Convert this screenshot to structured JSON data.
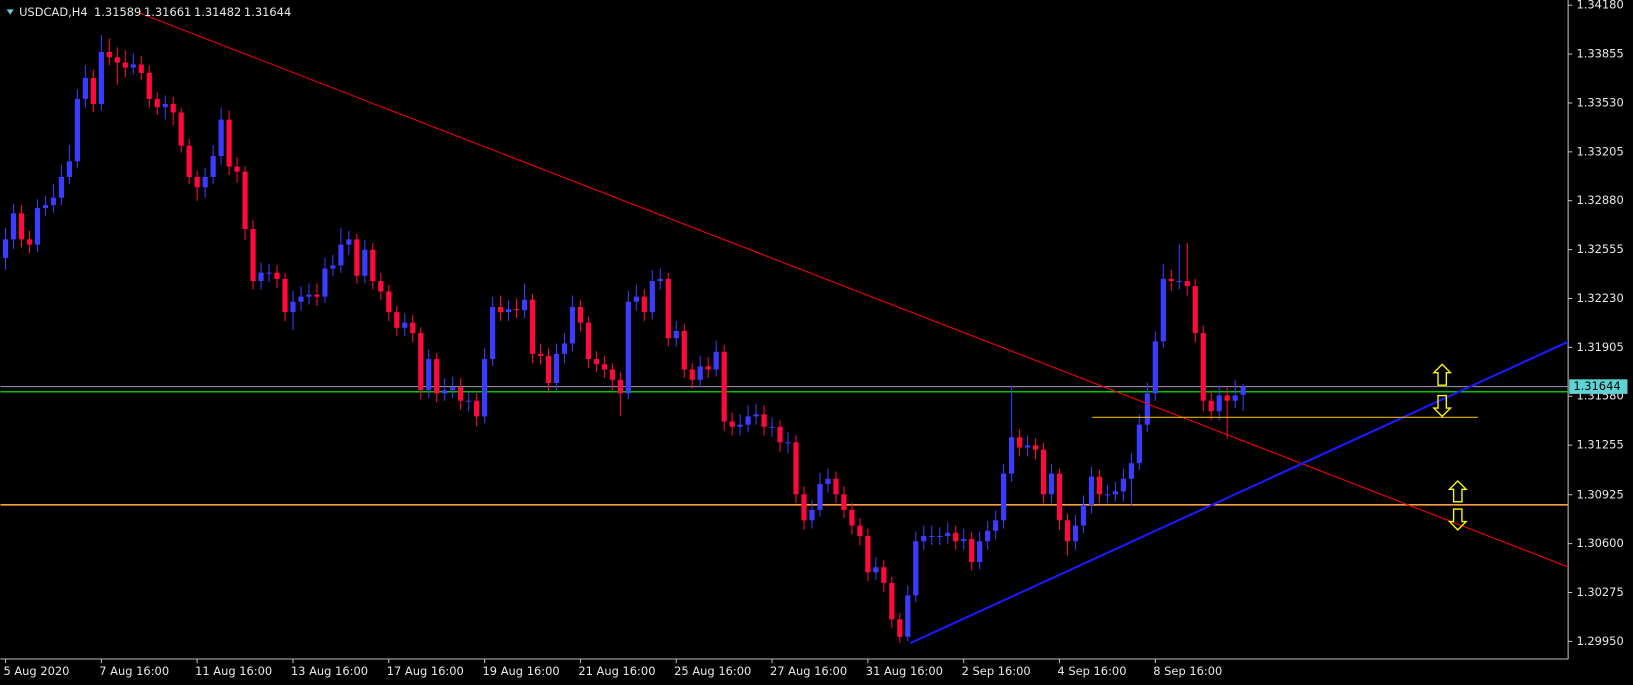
{
  "chart_data": {
    "type": "candlestick",
    "title": "USDCAD,H4",
    "header_values": [
      1.31589,
      1.31661,
      1.31482,
      1.31644
    ],
    "up_color": "#3c3cff",
    "down_color": "#ff0a3c",
    "ylim": [
      1.2984,
      1.3418
    ],
    "yticks": [
      {
        "value": 1.3418,
        "label": "1.34180"
      },
      1.33855,
      {
        "value": 1.3353,
        "label": "1.33530"
      },
      1.33205,
      {
        "value": 1.3288,
        "label": "1.32880"
      },
      1.32555,
      {
        "value": 1.3223,
        "label": "1.32230"
      },
      1.31905,
      {
        "value": 1.3158,
        "label": "1.31580"
      },
      1.31255,
      1.30925,
      {
        "value": 1.306,
        "label": "1.30600"
      },
      1.30275,
      {
        "value": 1.2995,
        "label": "1.29950"
      }
    ],
    "x": [
      "5 Aug 2020",
      null,
      null,
      null,
      null,
      null,
      null,
      null,
      null,
      null,
      null,
      null,
      "7 Aug 16:00",
      null,
      null,
      null,
      null,
      null,
      null,
      null,
      null,
      null,
      null,
      null,
      "11 Aug 16:00",
      null,
      null,
      null,
      null,
      null,
      null,
      null,
      null,
      null,
      null,
      null,
      "13 Aug 16:00",
      null,
      null,
      null,
      null,
      null,
      null,
      null,
      null,
      null,
      null,
      null,
      "17 Aug 16:00",
      null,
      null,
      null,
      null,
      null,
      null,
      null,
      null,
      null,
      null,
      null,
      "19 Aug 16:00",
      null,
      null,
      null,
      null,
      null,
      null,
      null,
      null,
      null,
      null,
      null,
      "21 Aug 16:00",
      null,
      null,
      null,
      null,
      null,
      null,
      null,
      null,
      null,
      null,
      null,
      "25 Aug 16:00",
      null,
      null,
      null,
      null,
      null,
      null,
      null,
      null,
      null,
      null,
      null,
      "27 Aug 16:00",
      null,
      null,
      null,
      null,
      null,
      null,
      null,
      null,
      null,
      null,
      null,
      "31 Aug 16:00",
      null,
      null,
      null,
      null,
      null,
      null,
      null,
      null,
      null,
      null,
      null,
      "2 Sep 16:00",
      null,
      null,
      null,
      null,
      null,
      null,
      null,
      null,
      null,
      null,
      null,
      "4 Sep 16:00",
      null,
      null,
      null,
      null,
      null,
      null,
      null,
      null,
      null,
      null,
      null,
      "8 Sep 16:00",
      null,
      null,
      null,
      null,
      null,
      null,
      null,
      null,
      null,
      null,
      null
    ],
    "candles": [
      [
        1.325,
        1.327,
        1.3242,
        1.32623
      ],
      [
        1.32623,
        1.3286,
        1.3256,
        1.32796
      ],
      [
        1.32796,
        1.3285,
        1.3257,
        1.32623
      ],
      [
        1.32623,
        1.3268,
        1.3253,
        1.32588
      ],
      [
        1.32588,
        1.3289,
        1.3254,
        1.32831
      ],
      [
        1.32831,
        1.3291,
        1.3278,
        1.32851
      ],
      [
        1.32851,
        1.3299,
        1.328,
        1.329
      ],
      [
        1.329,
        1.3312,
        1.3285,
        1.33038
      ],
      [
        1.33038,
        1.3325,
        1.3299,
        1.33142
      ],
      [
        1.33142,
        1.3362,
        1.331,
        1.33557
      ],
      [
        1.33557,
        1.3378,
        1.335,
        1.33696
      ],
      [
        1.33696,
        1.3375,
        1.3347,
        1.33523
      ],
      [
        1.33523,
        1.3398,
        1.3348,
        1.33869
      ],
      [
        1.33869,
        1.3396,
        1.3378,
        1.33834
      ],
      [
        1.33834,
        1.339,
        1.3365,
        1.33799
      ],
      [
        1.33799,
        1.3388,
        1.337,
        1.33765
      ],
      [
        1.33765,
        1.3386,
        1.3372,
        1.33786
      ],
      [
        1.33786,
        1.3384,
        1.3368,
        1.3373
      ],
      [
        1.3373,
        1.3378,
        1.335,
        1.33557
      ],
      [
        1.33557,
        1.336,
        1.3345,
        1.33502
      ],
      [
        1.33502,
        1.3358,
        1.3342,
        1.33523
      ],
      [
        1.33523,
        1.3357,
        1.3338,
        1.33467
      ],
      [
        1.33467,
        1.335,
        1.332,
        1.33246
      ],
      [
        1.33246,
        1.3329,
        1.3299,
        1.33038
      ],
      [
        1.33038,
        1.3308,
        1.3288,
        1.32969
      ],
      [
        1.32969,
        1.331,
        1.329,
        1.33038
      ],
      [
        1.33038,
        1.3325,
        1.3299,
        1.33177
      ],
      [
        1.33177,
        1.335,
        1.3312,
        1.33419
      ],
      [
        1.33419,
        1.3348,
        1.3305,
        1.33107
      ],
      [
        1.33107,
        1.3317,
        1.33,
        1.33073
      ],
      [
        1.33073,
        1.3311,
        1.3262,
        1.32692
      ],
      [
        1.32692,
        1.3275,
        1.3229,
        1.32346
      ],
      [
        1.32346,
        1.3247,
        1.3229,
        1.32402
      ],
      [
        1.32402,
        1.3246,
        1.3234,
        1.32402
      ],
      [
        1.32402,
        1.3245,
        1.323,
        1.3236
      ],
      [
        1.3236,
        1.324,
        1.3208,
        1.32139
      ],
      [
        1.32139,
        1.3228,
        1.3202,
        1.32208
      ],
      [
        1.32208,
        1.3231,
        1.3215,
        1.32242
      ],
      [
        1.32242,
        1.3233,
        1.3219,
        1.32256
      ],
      [
        1.32256,
        1.3233,
        1.3218,
        1.32242
      ],
      [
        1.32242,
        1.325,
        1.322,
        1.32429
      ],
      [
        1.32429,
        1.3252,
        1.3238,
        1.3245
      ],
      [
        1.3245,
        1.327,
        1.324,
        1.32588
      ],
      [
        1.32588,
        1.3268,
        1.3252,
        1.32623
      ],
      [
        1.32623,
        1.3266,
        1.3233,
        1.32381
      ],
      [
        1.32381,
        1.3262,
        1.3233,
        1.32554
      ],
      [
        1.32554,
        1.326,
        1.3229,
        1.32346
      ],
      [
        1.32346,
        1.324,
        1.3222,
        1.32277
      ],
      [
        1.32277,
        1.3232,
        1.3208,
        1.32139
      ],
      [
        1.32139,
        1.3218,
        1.3198,
        1.32035
      ],
      [
        1.32035,
        1.3213,
        1.3198,
        1.32069
      ],
      [
        1.32069,
        1.3212,
        1.3194,
        1.32
      ],
      [
        1.32,
        1.3204,
        1.3156,
        1.3162
      ],
      [
        1.3162,
        1.3189,
        1.3157,
        1.31827
      ],
      [
        1.31827,
        1.3187,
        1.3154,
        1.31599
      ],
      [
        1.31599,
        1.317,
        1.3155,
        1.3162
      ],
      [
        1.3162,
        1.3171,
        1.3157,
        1.3164
      ],
      [
        1.3164,
        1.317,
        1.3149,
        1.3155
      ],
      [
        1.3155,
        1.3161,
        1.3148,
        1.3155
      ],
      [
        1.3155,
        1.316,
        1.3138,
        1.31446
      ],
      [
        1.31446,
        1.319,
        1.314,
        1.31827
      ],
      [
        1.31827,
        1.3224,
        1.3178,
        1.32173
      ],
      [
        1.32173,
        1.3225,
        1.3208,
        1.32139
      ],
      [
        1.32139,
        1.3222,
        1.3208,
        1.32159
      ],
      [
        1.32159,
        1.3223,
        1.321,
        1.32152
      ],
      [
        1.32152,
        1.3233,
        1.321,
        1.32222
      ],
      [
        1.32222,
        1.3226,
        1.318,
        1.31862
      ],
      [
        1.31862,
        1.3193,
        1.3179,
        1.31848
      ],
      [
        1.31848,
        1.319,
        1.316,
        1.31668
      ],
      [
        1.31668,
        1.3193,
        1.3162,
        1.31862
      ],
      [
        1.31862,
        1.32,
        1.318,
        1.31931
      ],
      [
        1.31931,
        1.3225,
        1.3188,
        1.32173
      ],
      [
        1.32173,
        1.3222,
        1.3201,
        1.32069
      ],
      [
        1.32069,
        1.3211,
        1.3177,
        1.31827
      ],
      [
        1.31827,
        1.3188,
        1.3174,
        1.31793
      ],
      [
        1.31793,
        1.3185,
        1.317,
        1.31758
      ],
      [
        1.31758,
        1.318,
        1.3162,
        1.31689
      ],
      [
        1.31689,
        1.3174,
        1.3145,
        1.31599
      ],
      [
        1.31599,
        1.3228,
        1.3156,
        1.32208
      ],
      [
        1.32208,
        1.3232,
        1.3215,
        1.32242
      ],
      [
        1.32242,
        1.3229,
        1.3208,
        1.32139
      ],
      [
        1.32139,
        1.3242,
        1.3209,
        1.32346
      ],
      [
        1.32346,
        1.3243,
        1.3229,
        1.3236
      ],
      [
        1.3236,
        1.324,
        1.3191,
        1.31966
      ],
      [
        1.31966,
        1.3208,
        1.3191,
        1.32014
      ],
      [
        1.32014,
        1.3206,
        1.317,
        1.31758
      ],
      [
        1.31758,
        1.318,
        1.3163,
        1.31689
      ],
      [
        1.31689,
        1.3185,
        1.3164,
        1.31779
      ],
      [
        1.31779,
        1.3184,
        1.317,
        1.31758
      ],
      [
        1.31758,
        1.3195,
        1.3171,
        1.31876
      ],
      [
        1.31876,
        1.3192,
        1.3135,
        1.31412
      ],
      [
        1.31412,
        1.3147,
        1.3132,
        1.31377
      ],
      [
        1.31377,
        1.3146,
        1.3132,
        1.31391
      ],
      [
        1.31391,
        1.3152,
        1.3134,
        1.31446
      ],
      [
        1.31446,
        1.3153,
        1.3139,
        1.3146
      ],
      [
        1.3146,
        1.3152,
        1.3132,
        1.31377
      ],
      [
        1.31377,
        1.3144,
        1.3131,
        1.31377
      ],
      [
        1.31377,
        1.3142,
        1.3121,
        1.31274
      ],
      [
        1.31274,
        1.3134,
        1.312,
        1.31274
      ],
      [
        1.31274,
        1.3132,
        1.3087,
        1.30928
      ],
      [
        1.30928,
        1.3098,
        1.3069,
        1.30755
      ],
      [
        1.30755,
        1.3089,
        1.307,
        1.30824
      ],
      [
        1.30824,
        1.3107,
        1.3078,
        1.30997
      ],
      [
        1.30997,
        1.311,
        1.3094,
        1.31031
      ],
      [
        1.31031,
        1.3108,
        1.3087,
        1.30928
      ],
      [
        1.30928,
        1.3098,
        1.3077,
        1.30824
      ],
      [
        1.30824,
        1.3087,
        1.3066,
        1.3072
      ],
      [
        1.3072,
        1.3077,
        1.3059,
        1.30651
      ],
      [
        1.30651,
        1.307,
        1.3035,
        1.30409
      ],
      [
        1.30409,
        1.3051,
        1.3036,
        1.30443
      ],
      [
        1.30443,
        1.3049,
        1.3028,
        1.30339
      ],
      [
        1.30339,
        1.3038,
        1.3004,
        1.30097
      ],
      [
        1.30097,
        1.3014,
        1.2994,
        1.2998
      ],
      [
        1.2998,
        1.3032,
        1.2995,
        1.30256
      ],
      [
        1.30256,
        1.3068,
        1.3021,
        1.30616
      ],
      [
        1.30616,
        1.3072,
        1.3056,
        1.30651
      ],
      [
        1.30651,
        1.3072,
        1.3059,
        1.30651
      ],
      [
        1.30651,
        1.3071,
        1.3059,
        1.30651
      ],
      [
        1.30651,
        1.3074,
        1.306,
        1.30672
      ],
      [
        1.30672,
        1.3072,
        1.3056,
        1.30616
      ],
      [
        1.30616,
        1.307,
        1.3056,
        1.3063
      ],
      [
        1.3063,
        1.3068,
        1.3042,
        1.30478
      ],
      [
        1.30478,
        1.3068,
        1.3043,
        1.30616
      ],
      [
        1.30616,
        1.3075,
        1.3056,
        1.30685
      ],
      [
        1.30685,
        1.3082,
        1.3063,
        1.30755
      ],
      [
        1.30755,
        1.3113,
        1.307,
        1.31066
      ],
      [
        1.31066,
        1.3165,
        1.3101,
        1.31308
      ],
      [
        1.31308,
        1.3136,
        1.3118,
        1.31239
      ],
      [
        1.31239,
        1.3132,
        1.3118,
        1.31253
      ],
      [
        1.31253,
        1.313,
        1.3116,
        1.31225
      ],
      [
        1.31225,
        1.3127,
        1.3087,
        1.30928
      ],
      [
        1.30928,
        1.3113,
        1.3087,
        1.31066
      ],
      [
        1.31066,
        1.311,
        1.3069,
        1.30755
      ],
      [
        1.30755,
        1.308,
        1.3052,
        1.30616
      ],
      [
        1.30616,
        1.3079,
        1.3056,
        1.3072
      ],
      [
        1.3072,
        1.3092,
        1.3067,
        1.30858
      ],
      [
        1.30858,
        1.3111,
        1.308,
        1.31045
      ],
      [
        1.31045,
        1.3109,
        1.3087,
        1.30928
      ],
      [
        1.30928,
        1.3099,
        1.3087,
        1.30928
      ],
      [
        1.30928,
        1.3101,
        1.3088,
        1.30948
      ],
      [
        1.30948,
        1.311,
        1.3088,
        1.31031
      ],
      [
        1.31031,
        1.312,
        1.3085,
        1.31135
      ],
      [
        1.31135,
        1.3146,
        1.3109,
        1.31391
      ],
      [
        1.31391,
        1.3167,
        1.3134,
        1.31599
      ],
      [
        1.31599,
        1.3201,
        1.3155,
        1.31945
      ],
      [
        1.31945,
        1.3246,
        1.319,
        1.3236
      ],
      [
        1.3236,
        1.3242,
        1.3228,
        1.32346
      ],
      [
        1.32346,
        1.3259,
        1.3229,
        1.32346
      ],
      [
        1.32346,
        1.326,
        1.3225,
        1.32312
      ],
      [
        1.32312,
        1.3236,
        1.3194,
        1.32
      ],
      [
        1.32,
        1.3205,
        1.3148,
        1.3155
      ],
      [
        1.3155,
        1.3161,
        1.3142,
        1.31481
      ],
      [
        1.31481,
        1.3165,
        1.3142,
        1.31585
      ],
      [
        1.31585,
        1.3164,
        1.313,
        1.3155
      ],
      [
        1.3155,
        1.3169,
        1.315,
        1.31585
      ],
      [
        1.31589,
        1.31661,
        1.31482,
        1.31644
      ]
    ],
    "trendlines": [
      {
        "from": [
          16.6,
          1.34132
        ],
        "to": [
          195.8,
          1.30443
        ],
        "color": "#ff0000"
      },
      {
        "from": [
          113.3,
          1.29938
        ],
        "to": [
          195.8,
          1.31945
        ],
        "color": "#1a1aff"
      },
      {
        "from": [
          136.1,
          1.3144
        ],
        "to": [
          184.4,
          1.3144
        ],
        "color": "#e8b000"
      }
    ],
    "hlines": [
      {
        "price": 1.3161,
        "color": "#00c800"
      },
      {
        "price": 1.30858,
        "color": "#ffa040"
      }
    ],
    "bid_line_color": "#a0a0a0",
    "price_label_color": "#5fd3d3"
  }
}
